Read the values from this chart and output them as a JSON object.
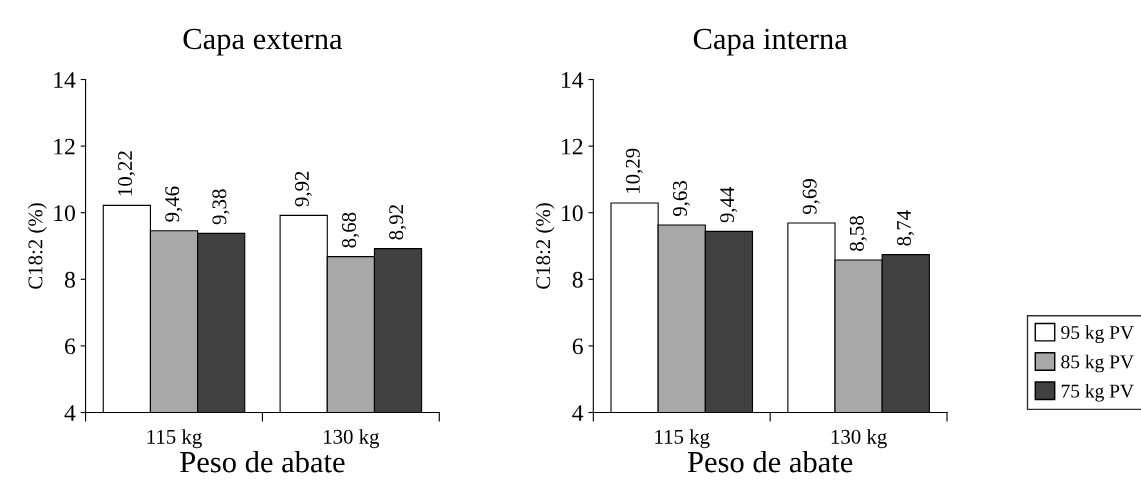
{
  "chart_data": [
    {
      "type": "bar",
      "title": "Capa externa",
      "xlabel": "Peso de abate",
      "ylabel": "C18:2 (%)",
      "categories": [
        "115 kg",
        "130 kg"
      ],
      "ylim": [
        4,
        14
      ],
      "yticks": [
        4,
        6,
        8,
        10,
        12,
        14
      ],
      "grid": false,
      "legend": false,
      "series": [
        {
          "color": "#ffffff",
          "values": [
            10.22,
            9.92
          ],
          "value_labels": [
            "10,22",
            "9,92"
          ]
        },
        {
          "color": "#a8a8a8",
          "values": [
            9.46,
            8.68
          ],
          "value_labels": [
            "9,46",
            "8,68"
          ]
        },
        {
          "color": "#404040",
          "values": [
            9.38,
            8.92
          ],
          "value_labels": [
            "9,38",
            "8,92"
          ]
        }
      ]
    },
    {
      "type": "bar",
      "title": "Capa interna",
      "xlabel": "Peso de abate",
      "ylabel": "C18:2 (%)",
      "categories": [
        "115 kg",
        "130 kg"
      ],
      "ylim": [
        4,
        14
      ],
      "yticks": [
        4,
        6,
        8,
        10,
        12,
        14
      ],
      "grid": false,
      "legend": "right",
      "series": [
        {
          "name": "95 kg PV",
          "color": "#ffffff",
          "values": [
            10.29,
            9.69
          ],
          "value_labels": [
            "10,29",
            "9,69"
          ]
        },
        {
          "name": "85 kg PV",
          "color": "#a8a8a8",
          "values": [
            9.63,
            8.58
          ],
          "value_labels": [
            "9,63",
            "8,58"
          ]
        },
        {
          "name": "75 kg PV",
          "color": "#404040",
          "values": [
            9.44,
            8.74
          ],
          "value_labels": [
            "9,44",
            "8,74"
          ]
        }
      ]
    }
  ]
}
